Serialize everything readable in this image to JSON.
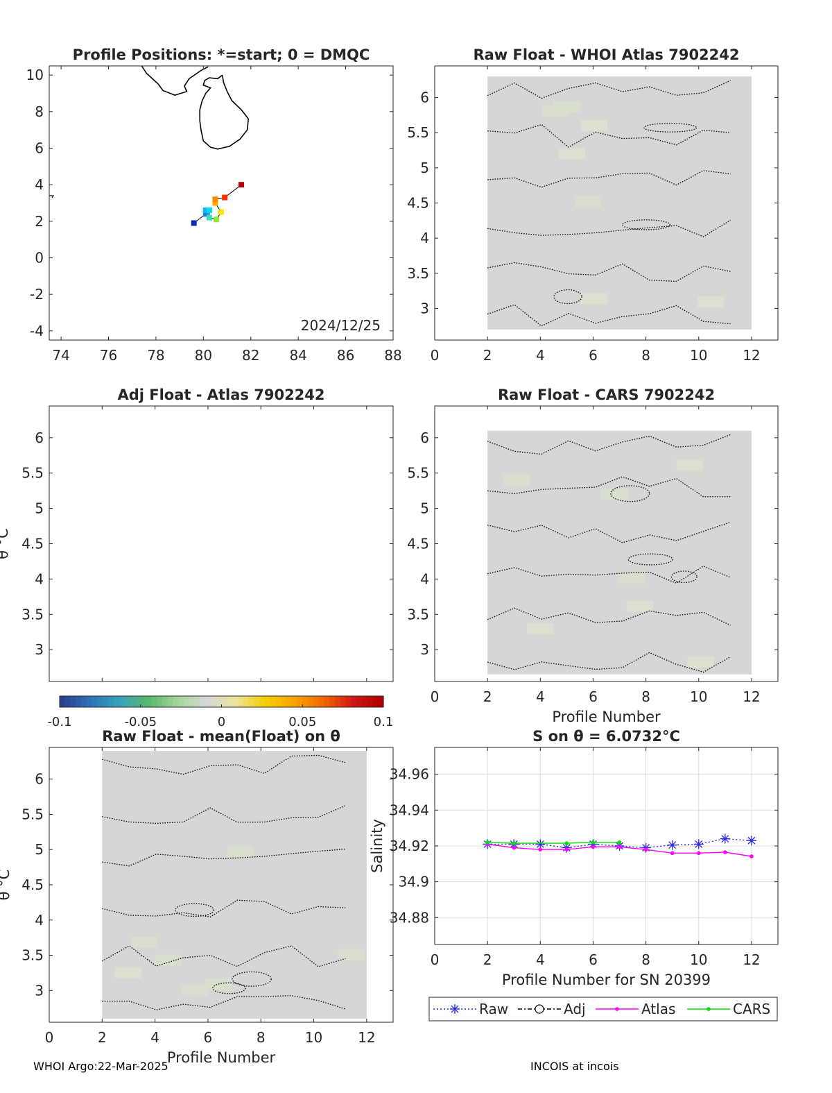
{
  "chart_data": [
    {
      "id": "positions",
      "type": "scatter",
      "title": "Profile Positions: *=start; 0 = DMQC",
      "date_label": "2024/12/25",
      "xlim": [
        73.5,
        88
      ],
      "ylim": [
        -4.5,
        10.5
      ],
      "xticks": [
        74,
        76,
        78,
        80,
        82,
        84,
        86,
        88
      ],
      "yticks": [
        -4,
        -2,
        0,
        2,
        4,
        6,
        8,
        10
      ],
      "track": [
        {
          "lon": 79.6,
          "lat": 1.9,
          "color": "#0a2cc9"
        },
        {
          "lon": 80.1,
          "lat": 2.4,
          "color": "#1f7fe8"
        },
        {
          "lon": 80.1,
          "lat": 2.6,
          "color": "#12b6e8"
        },
        {
          "lon": 80.25,
          "lat": 2.6,
          "color": "#00d9ff"
        },
        {
          "lon": 80.25,
          "lat": 2.2,
          "color": "#33e0b8"
        },
        {
          "lon": 80.55,
          "lat": 2.1,
          "color": "#90e830"
        },
        {
          "lon": 80.75,
          "lat": 2.5,
          "color": "#ffe800"
        },
        {
          "lon": 80.5,
          "lat": 3.0,
          "color": "#ffb000"
        },
        {
          "lon": 80.5,
          "lat": 3.2,
          "color": "#ff8800"
        },
        {
          "lon": 80.9,
          "lat": 3.3,
          "color": "#ff3000"
        },
        {
          "lon": 81.6,
          "lat": 4.0,
          "color": "#b30000"
        }
      ],
      "dmqc_flags": "0"
    },
    {
      "id": "raw-whoi",
      "type": "heatmap",
      "title": "Raw Float - WHOI Atlas  7902242",
      "xlim": [
        0,
        13
      ],
      "ylim": [
        2.55,
        6.45
      ],
      "xticks": [
        0,
        2,
        4,
        6,
        8,
        10,
        12
      ],
      "yticks": [
        3,
        3.5,
        4,
        4.5,
        5,
        5.5,
        6
      ],
      "field_value": 0,
      "field_extent": {
        "x": [
          2,
          12
        ],
        "y": [
          2.7,
          6.3
        ]
      },
      "contour_level": 0
    },
    {
      "id": "adj-atlas",
      "type": "heatmap",
      "title": "Adj Float - Atlas  7902242",
      "ylabel": "θ °C",
      "xlim": [
        0,
        13
      ],
      "ylim": [
        2.55,
        6.45
      ],
      "yticks": [
        3,
        3.5,
        4,
        4.5,
        5,
        5.5,
        6
      ],
      "empty": true
    },
    {
      "id": "raw-cars",
      "type": "heatmap",
      "title": "Raw Float - CARS  7902242",
      "xlabel": "Profile Number",
      "xlim": [
        0,
        13
      ],
      "ylim": [
        2.55,
        6.45
      ],
      "xticks": [
        0,
        2,
        4,
        6,
        8,
        10,
        12
      ],
      "yticks": [
        3,
        3.5,
        4,
        4.5,
        5,
        5.5,
        6
      ],
      "field_value": 0,
      "field_extent": {
        "x": [
          2,
          12
        ],
        "y": [
          2.65,
          6.1
        ]
      },
      "contour_level": 0
    },
    {
      "id": "colorbar",
      "type": "colorbar",
      "range": [
        -0.1,
        0.1
      ],
      "ticks": [
        "-0.1",
        "-0.05",
        "0",
        "0.05",
        "0.1"
      ],
      "colors": [
        "#2b3f8f",
        "#2f75b6",
        "#38a3b8",
        "#5ab86a",
        "#a8d59a",
        "#d8d8d8",
        "#ece39a",
        "#f4d000",
        "#f6a400",
        "#f26a00",
        "#d01818",
        "#b00000"
      ]
    },
    {
      "id": "raw-mean",
      "type": "heatmap",
      "title": "Raw Float - mean(Float) on θ",
      "xlabel": "Profile Number",
      "ylabel": "θ °C",
      "xlim": [
        0,
        13
      ],
      "ylim": [
        2.55,
        6.45
      ],
      "xticks": [
        0,
        2,
        4,
        6,
        8,
        10,
        12
      ],
      "yticks": [
        3,
        3.5,
        4,
        4.5,
        5,
        5.5,
        6
      ],
      "field_value": 0,
      "field_extent": {
        "x": [
          2,
          12
        ],
        "y": [
          2.6,
          6.4
        ]
      },
      "contour_level": 0
    },
    {
      "id": "salinity",
      "type": "line",
      "title": "S on θ = 6.0732°C",
      "xlabel": "Profile Number for SN 20399",
      "ylabel": "Salinity",
      "xlim": [
        0,
        13
      ],
      "ylim": [
        34.865,
        34.975
      ],
      "xticks": [
        0,
        2,
        4,
        6,
        8,
        10,
        12
      ],
      "yticks": [
        34.88,
        34.9,
        34.92,
        34.94,
        34.96
      ],
      "ytick_labels": [
        "34.88",
        "34.9",
        "34.92",
        "34.94",
        "34.96"
      ],
      "grid": true,
      "legend": "bottom",
      "series": [
        {
          "name": "Raw",
          "color": "#2a2ae6",
          "style": "dotted",
          "marker": "asterisk",
          "x": [
            2,
            3,
            4,
            5,
            6,
            7,
            8,
            9,
            10,
            11,
            12
          ],
          "y": [
            34.921,
            34.921,
            34.921,
            34.919,
            34.921,
            34.92,
            34.919,
            34.9205,
            34.921,
            34.924,
            34.923
          ]
        },
        {
          "name": "Adj",
          "color": "#000000",
          "style": "dashdot",
          "marker": "circle",
          "x": [],
          "y": []
        },
        {
          "name": "Atlas",
          "color": "#ff00ff",
          "style": "solid",
          "marker": "dot",
          "x": [
            2,
            3,
            4,
            5,
            6,
            7,
            8,
            9,
            10,
            11,
            12
          ],
          "y": [
            34.921,
            34.919,
            34.918,
            34.918,
            34.9195,
            34.9195,
            34.918,
            34.916,
            34.916,
            34.9165,
            34.9142
          ]
        },
        {
          "name": "CARS",
          "color": "#00e000",
          "style": "solid",
          "marker": "dot",
          "x": [
            2,
            3,
            5,
            6,
            7
          ],
          "y": [
            34.922,
            34.9215,
            34.9215,
            34.922,
            34.922
          ]
        }
      ]
    }
  ],
  "footer": {
    "left": "WHOI Argo:22-Mar-2025",
    "right": "INCOIS at incois"
  }
}
